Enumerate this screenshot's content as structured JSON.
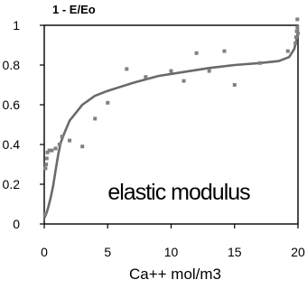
{
  "chart_data": {
    "type": "scatter",
    "title": "",
    "ylabel": "1 - E/Eo",
    "xlabel": "Ca++ mol/m3",
    "annotation": "elastic modulus",
    "xlim": [
      0,
      20
    ],
    "ylim": [
      0,
      1
    ],
    "xticks": [
      "0",
      "5",
      "10",
      "15",
      "20"
    ],
    "yticks": [
      "0",
      "0.2",
      "0.4",
      "0.6",
      "0.8",
      "1"
    ],
    "grid": false,
    "legend": "none",
    "colors": {
      "curve": "#6a6a6a",
      "points": "#808080",
      "axes": "#000000"
    },
    "series": [
      {
        "type": "scatter",
        "points": [
          [
            0.05,
            0.05
          ],
          [
            0.1,
            0.28
          ],
          [
            0.15,
            0.3
          ],
          [
            0.2,
            0.33
          ],
          [
            0.25,
            0.36
          ],
          [
            0.4,
            0.37
          ],
          [
            0.6,
            0.37
          ],
          [
            0.9,
            0.38
          ],
          [
            1.2,
            0.4
          ],
          [
            1.4,
            0.44
          ],
          [
            2.0,
            0.42
          ],
          [
            3.0,
            0.39
          ],
          [
            4.0,
            0.53
          ],
          [
            5.0,
            0.61
          ],
          [
            6.5,
            0.78
          ],
          [
            8.0,
            0.74
          ],
          [
            10.0,
            0.77
          ],
          [
            11.0,
            0.72
          ],
          [
            12.0,
            0.86
          ],
          [
            13.0,
            0.77
          ],
          [
            14.2,
            0.87
          ],
          [
            15.0,
            0.7
          ],
          [
            17.0,
            0.81
          ],
          [
            19.2,
            0.87
          ],
          [
            19.8,
            0.91
          ],
          [
            19.85,
            0.94
          ],
          [
            19.9,
            0.97
          ],
          [
            19.95,
            0.99
          ],
          [
            19.95,
            1.03
          ],
          [
            20.0,
            0.96
          ]
        ]
      },
      {
        "type": "line",
        "points": [
          [
            0.0,
            0.03
          ],
          [
            0.15,
            0.05
          ],
          [
            0.3,
            0.08
          ],
          [
            0.5,
            0.13
          ],
          [
            0.7,
            0.19
          ],
          [
            0.9,
            0.27
          ],
          [
            1.1,
            0.35
          ],
          [
            1.3,
            0.41
          ],
          [
            1.6,
            0.46
          ],
          [
            2.0,
            0.52
          ],
          [
            3.0,
            0.6
          ],
          [
            4.0,
            0.645
          ],
          [
            5.0,
            0.67
          ],
          [
            7.0,
            0.71
          ],
          [
            9.0,
            0.745
          ],
          [
            11.0,
            0.765
          ],
          [
            13.0,
            0.785
          ],
          [
            15.0,
            0.8
          ],
          [
            17.0,
            0.81
          ],
          [
            18.5,
            0.82
          ],
          [
            19.3,
            0.84
          ],
          [
            19.7,
            0.88
          ],
          [
            19.9,
            0.93
          ],
          [
            20.0,
            0.98
          ]
        ]
      }
    ]
  }
}
